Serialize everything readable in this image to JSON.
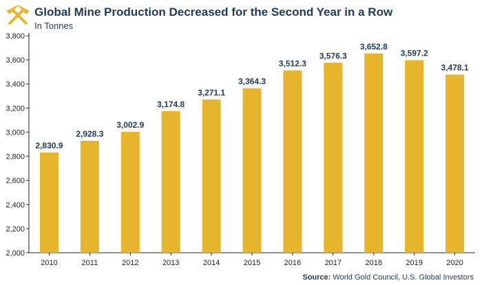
{
  "header": {
    "title": "Global Mine Production Decreased for the Second Year in a Row",
    "subtitle": "In Tonnes"
  },
  "source": {
    "label": "Source:",
    "text": "World Gold Council, U.S. Global Investors"
  },
  "colors": {
    "bar": "#e6b52b",
    "label": "#1f3a5a",
    "axis": "#222222",
    "logo": "#e6b52b"
  },
  "chart_data": {
    "type": "bar",
    "title": "Global Mine Production Decreased for the Second Year in a Row",
    "subtitle": "In Tonnes",
    "categories": [
      "2010",
      "2011",
      "2012",
      "2013",
      "2014",
      "2015",
      "2016",
      "2017",
      "2018",
      "2019",
      "2020"
    ],
    "values": [
      2830.9,
      2928.3,
      3002.9,
      3174.8,
      3271.1,
      3364.3,
      3512.3,
      3576.3,
      3652.8,
      3597.2,
      3478.1
    ],
    "value_labels": [
      "2,830.9",
      "2,928.3",
      "3,002.9",
      "3,174.8",
      "3,271.1",
      "3,364.3",
      "3,512.3",
      "3,576.3",
      "3,652.8",
      "3,597.2",
      "3,478.1"
    ],
    "yticks": [
      2000,
      2200,
      2400,
      2600,
      2800,
      3000,
      3200,
      3400,
      3600,
      3800
    ],
    "ytick_labels": [
      "2,000",
      "2,200",
      "2,400",
      "2,600",
      "2,800",
      "3,000",
      "3,200",
      "3,400",
      "3,600",
      "3,800"
    ],
    "ylim": [
      2000,
      3800
    ],
    "xlabel": "",
    "ylabel": "",
    "grid": false,
    "legend": "none"
  }
}
